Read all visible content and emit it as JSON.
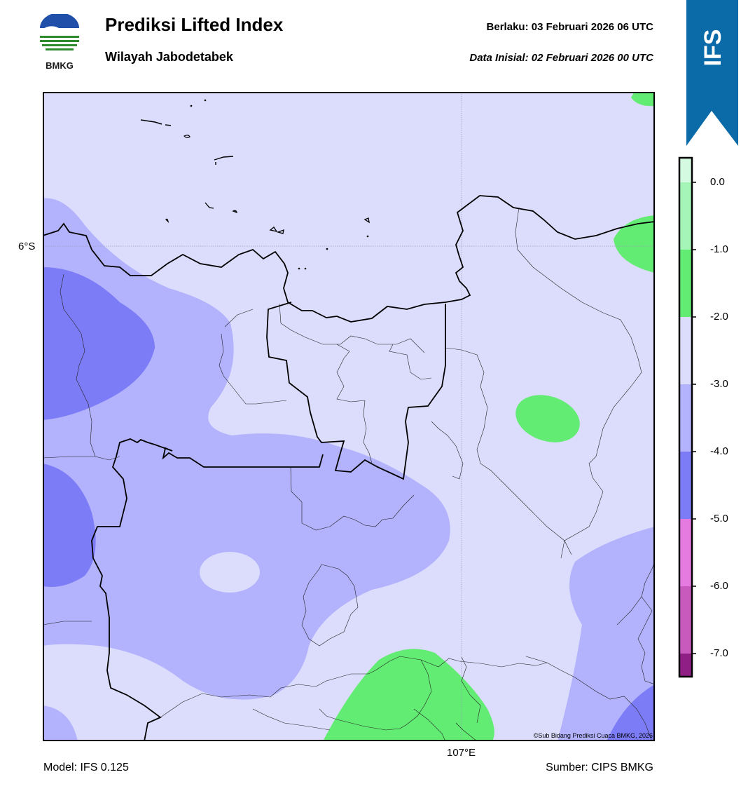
{
  "logo": {
    "text": "BMKG"
  },
  "header": {
    "title": "Prediksi Lifted Index",
    "subtitle": "Wilayah Jabodetabek",
    "valid": "Berlaku:  03 Februari 2026 06 UTC",
    "init": "Data Inisial:  02 Februari 2026 00 UTC"
  },
  "ribbon": {
    "label": "IFS",
    "color": "#0b6aa8"
  },
  "map": {
    "lat_label": "6°S",
    "lon_label": "107°E",
    "copyright": "©Sub Bidang Prediksi Cuaca BMKG, 2026"
  },
  "colorbar": {
    "ticks": [
      "0.0",
      "-1.0",
      "-2.0",
      "-3.0",
      "-4.0",
      "-5.0",
      "-6.0",
      "-7.0"
    ],
    "bins": [
      {
        "range": "> 0.0",
        "color": "#d4fbe1"
      },
      {
        "range": "0.0 to -1.0",
        "color": "#a6f5b8"
      },
      {
        "range": "-1.0 to -2.0",
        "color": "#63ec73"
      },
      {
        "range": "-2.0 to -3.0",
        "color": "#dcdcfd"
      },
      {
        "range": "-3.0 to -4.0",
        "color": "#b2b2fd"
      },
      {
        "range": "-4.0 to -5.0",
        "color": "#7d7cf7"
      },
      {
        "range": "-5.0 to -6.0",
        "color": "#e57ae0"
      },
      {
        "range": "-6.0 to -7.0",
        "color": "#c85abd"
      },
      {
        "range": "< -7.0",
        "color": "#8f1f84"
      }
    ]
  },
  "footer": {
    "model": "Model: IFS 0.125",
    "source": "Sumber: CIPS BMKG"
  }
}
